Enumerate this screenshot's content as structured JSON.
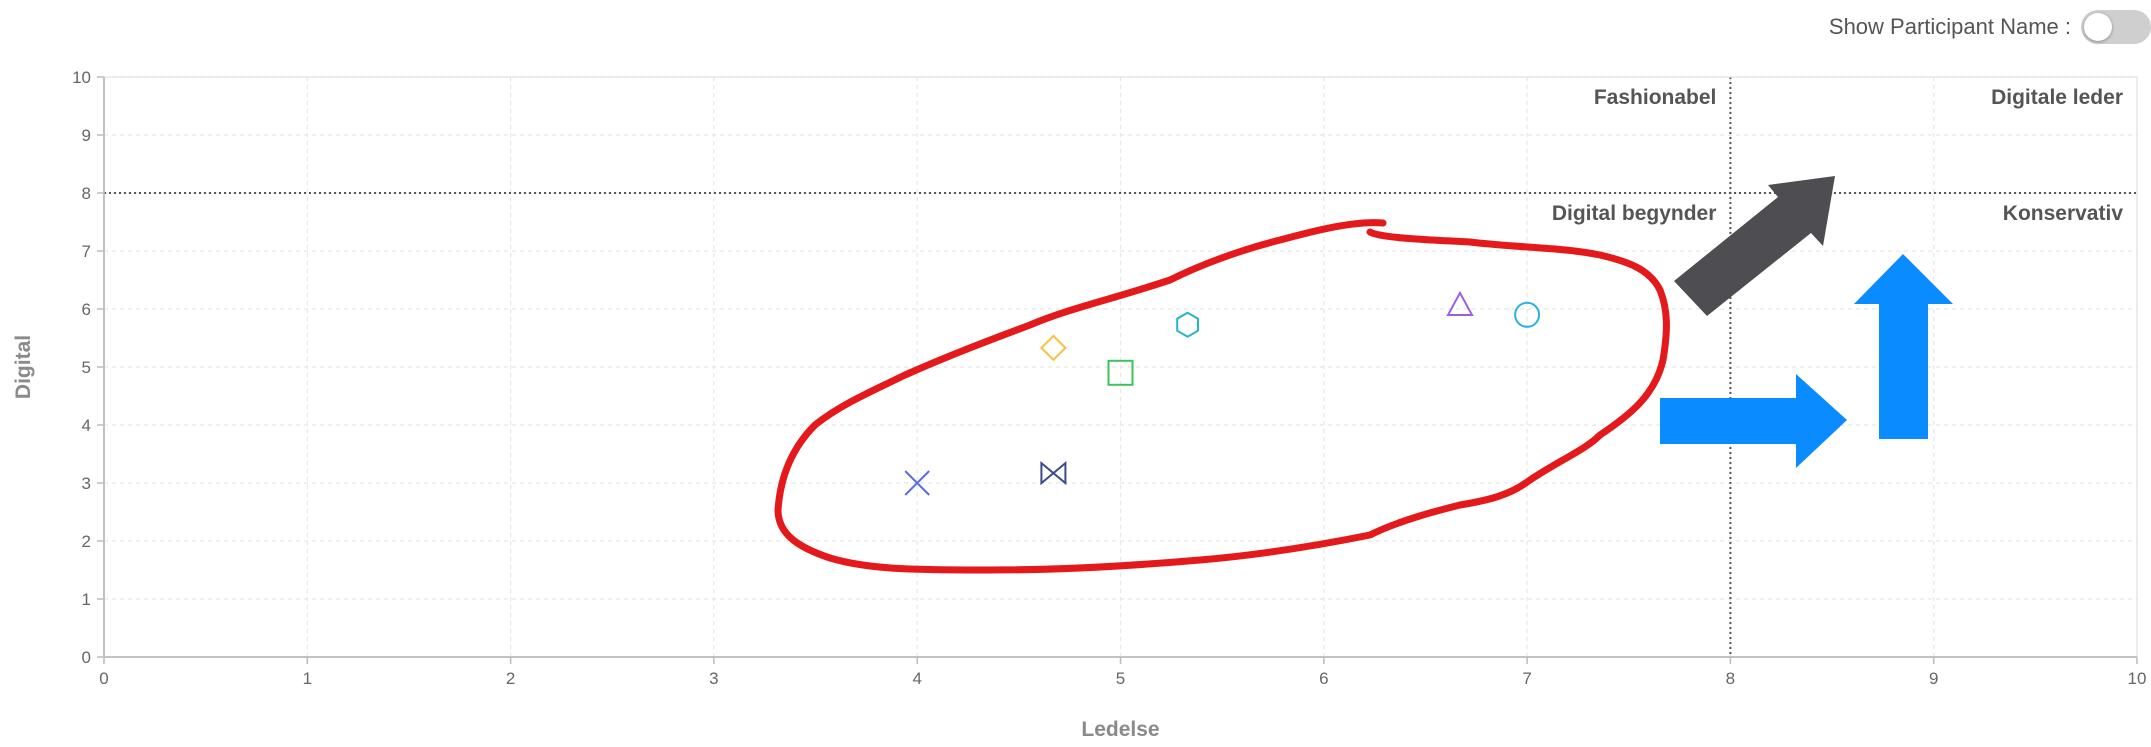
{
  "toggle": {
    "label": "Show Participant Name :",
    "checked": false
  },
  "chart_data": {
    "type": "scatter",
    "xlabel": "Ledelse",
    "ylabel": "Digital",
    "xlim": [
      0,
      10
    ],
    "ylim": [
      0,
      10
    ],
    "xticks": [
      "0",
      "1",
      "2",
      "3",
      "4",
      "5",
      "6",
      "7",
      "8",
      "9",
      "10"
    ],
    "yticks": [
      "0",
      "1",
      "2",
      "3",
      "4",
      "5",
      "6",
      "7",
      "8",
      "9",
      "10"
    ],
    "grid": true,
    "divider": {
      "x": 8,
      "y": 8
    },
    "quadrant_labels": [
      {
        "text": "Fashionabel",
        "x": 8,
        "y": 10,
        "align": "end"
      },
      {
        "text": "Digitale leder",
        "x": 10,
        "y": 10,
        "align": "end"
      },
      {
        "text": "Digital begynder",
        "x": 8,
        "y": 8,
        "align": "end"
      },
      {
        "text": "Konservativ",
        "x": 10,
        "y": 8,
        "align": "end"
      }
    ],
    "points": [
      {
        "x": 4.0,
        "y": 3.0,
        "marker": "cross",
        "color": "#5b6ee1"
      },
      {
        "x": 4.67,
        "y": 3.17,
        "marker": "bowtie",
        "color": "#3a4a8c"
      },
      {
        "x": 4.67,
        "y": 5.33,
        "marker": "diamond",
        "color": "#f5c242"
      },
      {
        "x": 5.0,
        "y": 4.9,
        "marker": "square",
        "color": "#3cc35a"
      },
      {
        "x": 5.33,
        "y": 5.73,
        "marker": "hexagon",
        "color": "#26b5c8"
      },
      {
        "x": 6.67,
        "y": 6.07,
        "marker": "triangle",
        "color": "#9b5de5"
      },
      {
        "x": 7.0,
        "y": 5.9,
        "marker": "circle",
        "color": "#2bb0e0"
      }
    ]
  },
  "annotations": {
    "ellipse_color": "#e3191b",
    "dark_arrow_color": "#4d4d52",
    "blue_arrow_color": "#0a8bff"
  }
}
